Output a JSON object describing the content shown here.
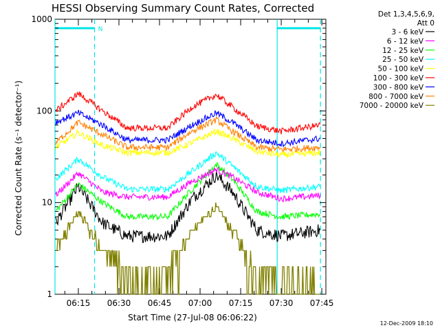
{
  "chart_data": {
    "type": "line",
    "title": "HESSI Observing Summary Count Rates, Corrected",
    "xlabel": "Start Time (27-Jul-08 06:06:22)",
    "ylabel": "Corrected Count Rate (s⁻¹ detector⁻¹)",
    "y_scale": "log",
    "ylim": [
      1,
      1000
    ],
    "xlim": [
      "06:06:22",
      "07:46:30"
    ],
    "y_ticks": [
      "1",
      "10",
      "100",
      "1000"
    ],
    "x_ticks": [
      "06:15",
      "06:30",
      "06:45",
      "07:00",
      "07:15",
      "07:30",
      "07:45"
    ],
    "legend_header": [
      "Det 1,3,4,5,6,9,",
      "Att 0"
    ],
    "legend_position": "right",
    "timestamp": "12-Dec-2009 18:10",
    "night_marker": "N",
    "annotations": {
      "night_bar_color": "#00e5e5",
      "night_1": {
        "start": "06:06:22",
        "end": "06:21:00"
      },
      "night_2": {
        "start": "07:28:30",
        "end": "07:44:30"
      }
    },
    "series": [
      {
        "name": "3 - 6 keV",
        "color": "#000000",
        "values": [
          [
            6.11,
            6
          ],
          [
            6.25,
            15
          ],
          [
            6.4,
            6
          ],
          [
            6.55,
            4.3
          ],
          [
            6.8,
            4.3
          ],
          [
            6.95,
            11
          ],
          [
            7.1,
            20
          ],
          [
            7.2,
            13
          ],
          [
            7.35,
            5
          ],
          [
            7.5,
            4.3
          ],
          [
            7.74,
            5
          ]
        ]
      },
      {
        "name": "6 - 12 keV",
        "color": "#ff00ff",
        "values": [
          [
            6.11,
            12
          ],
          [
            6.25,
            21
          ],
          [
            6.4,
            13
          ],
          [
            6.55,
            11.5
          ],
          [
            6.8,
            11.5
          ],
          [
            6.95,
            17
          ],
          [
            7.1,
            23
          ],
          [
            7.2,
            19
          ],
          [
            7.35,
            13
          ],
          [
            7.5,
            11
          ],
          [
            7.74,
            12
          ]
        ]
      },
      {
        "name": "12 - 25 keV",
        "color": "#00ff00",
        "values": [
          [
            6.11,
            8
          ],
          [
            6.25,
            16
          ],
          [
            6.4,
            10
          ],
          [
            6.55,
            7
          ],
          [
            6.8,
            7
          ],
          [
            6.95,
            14
          ],
          [
            7.1,
            26
          ],
          [
            7.2,
            18
          ],
          [
            7.35,
            8
          ],
          [
            7.5,
            7
          ],
          [
            7.74,
            7.5
          ]
        ]
      },
      {
        "name": "25 - 50 keV",
        "color": "#00ffff",
        "values": [
          [
            6.11,
            18
          ],
          [
            6.25,
            30
          ],
          [
            6.4,
            19
          ],
          [
            6.55,
            14
          ],
          [
            6.8,
            14
          ],
          [
            6.95,
            22
          ],
          [
            7.1,
            35
          ],
          [
            7.2,
            25
          ],
          [
            7.35,
            15
          ],
          [
            7.5,
            13.5
          ],
          [
            7.74,
            15
          ]
        ]
      },
      {
        "name": "50 - 100 keV",
        "color": "#ffff00",
        "values": [
          [
            6.11,
            40
          ],
          [
            6.25,
            58
          ],
          [
            6.4,
            42
          ],
          [
            6.55,
            35
          ],
          [
            6.8,
            35
          ],
          [
            6.95,
            45
          ],
          [
            7.1,
            60
          ],
          [
            7.2,
            50
          ],
          [
            7.35,
            36
          ],
          [
            7.5,
            33
          ],
          [
            7.74,
            35
          ]
        ]
      },
      {
        "name": "100 - 300 keV",
        "color": "#ff0000",
        "values": [
          [
            6.11,
            100
          ],
          [
            6.25,
            155
          ],
          [
            6.4,
            100
          ],
          [
            6.55,
            65
          ],
          [
            6.8,
            65
          ],
          [
            6.95,
            110
          ],
          [
            7.1,
            150
          ],
          [
            7.2,
            110
          ],
          [
            7.35,
            68
          ],
          [
            7.5,
            60
          ],
          [
            7.74,
            70
          ]
        ]
      },
      {
        "name": "300 - 800 keV",
        "color": "#0000ff",
        "values": [
          [
            6.11,
            75
          ],
          [
            6.25,
            95
          ],
          [
            6.4,
            70
          ],
          [
            6.55,
            48
          ],
          [
            6.8,
            48
          ],
          [
            6.95,
            70
          ],
          [
            7.1,
            95
          ],
          [
            7.2,
            75
          ],
          [
            7.35,
            48
          ],
          [
            7.5,
            44
          ],
          [
            7.74,
            50
          ]
        ]
      },
      {
        "name": "800 - 7000 keV",
        "color": "#ff8000",
        "values": [
          [
            6.11,
            45
          ],
          [
            6.25,
            75
          ],
          [
            6.4,
            55
          ],
          [
            6.55,
            40
          ],
          [
            6.8,
            40
          ],
          [
            6.95,
            60
          ],
          [
            7.1,
            80
          ],
          [
            7.2,
            60
          ],
          [
            7.35,
            40
          ],
          [
            7.5,
            38
          ],
          [
            7.74,
            40
          ]
        ]
      },
      {
        "name": "7000 - 20000 keV",
        "color": "#808000",
        "values": [
          [
            6.11,
            3
          ],
          [
            6.25,
            8
          ],
          [
            6.4,
            3
          ],
          [
            6.55,
            1.8
          ],
          [
            6.8,
            1.8
          ],
          [
            6.95,
            5
          ],
          [
            7.1,
            9
          ],
          [
            7.2,
            5
          ],
          [
            7.35,
            1.8
          ],
          [
            7.5,
            1.8
          ],
          [
            7.74,
            1.5
          ]
        ]
      }
    ]
  }
}
